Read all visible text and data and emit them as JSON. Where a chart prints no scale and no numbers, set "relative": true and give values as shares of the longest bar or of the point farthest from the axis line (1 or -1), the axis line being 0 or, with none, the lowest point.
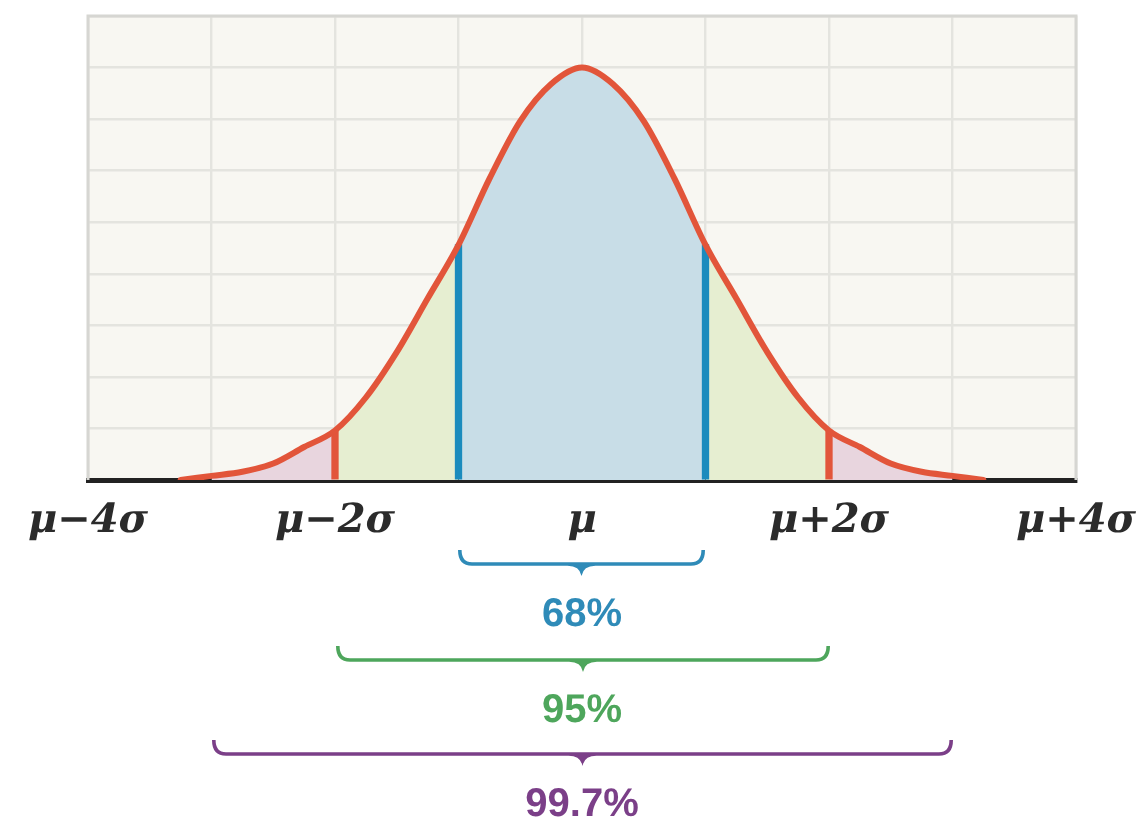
{
  "chart_data": {
    "type": "area",
    "relative": true,
    "categories": [
      "μ−4σ",
      null,
      null,
      null,
      null,
      null,
      null,
      null,
      "μ−2σ",
      null,
      null,
      null,
      null,
      null,
      null,
      null,
      "μ",
      null,
      null,
      null,
      null,
      null,
      null,
      null,
      "μ+2σ",
      null,
      null,
      null,
      null,
      null,
      null,
      null,
      "μ+4σ"
    ],
    "tick_labels": "x",
    "grid": true,
    "marker": "none",
    "series": [
      {
        "color": "#c8dde7",
        "values": [
          null,
          null,
          null,
          null,
          null,
          null,
          null,
          null,
          null,
          null,
          null,
          null,
          0.57,
          0.73,
          0.87,
          0.96,
          1,
          0.96,
          0.87,
          0.73,
          0.57,
          null,
          null,
          null,
          null,
          null,
          null,
          null,
          null,
          null,
          null,
          null,
          null
        ]
      },
      {
        "color": "#e6eed1",
        "values": [
          null,
          null,
          null,
          null,
          null,
          null,
          null,
          null,
          0.12,
          0.2,
          0.31,
          0.44,
          0.57,
          null,
          null,
          null,
          null,
          null,
          null,
          null,
          null,
          null,
          null,
          null,
          null,
          null,
          null,
          null,
          null,
          null,
          null,
          null,
          null
        ]
      },
      {
        "color": "#e6eed1",
        "values": [
          null,
          null,
          null,
          null,
          null,
          null,
          null,
          null,
          null,
          null,
          null,
          null,
          null,
          null,
          null,
          null,
          null,
          null,
          null,
          null,
          0.57,
          0.44,
          0.31,
          0.2,
          0.12,
          null,
          null,
          null,
          null,
          null,
          null,
          null,
          null
        ]
      },
      {
        "color": "#e8d5de",
        "values": [
          null,
          null,
          null,
          null,
          0.01,
          0.02,
          0.04,
          0.08,
          0.12,
          null,
          null,
          null,
          null,
          null,
          null,
          null,
          null,
          null,
          null,
          null,
          null,
          null,
          null,
          null,
          null,
          null,
          null,
          null,
          null,
          null,
          null,
          null,
          null
        ]
      },
      {
        "color": "#e8d5de",
        "values": [
          null,
          null,
          null,
          null,
          null,
          null,
          null,
          null,
          null,
          null,
          null,
          null,
          null,
          null,
          null,
          null,
          null,
          null,
          null,
          null,
          null,
          null,
          null,
          null,
          0.12,
          0.08,
          0.04,
          0.02,
          0.01,
          null,
          null,
          null,
          null
        ]
      },
      {
        "type": "bar",
        "color": "#1b8bbd",
        "values": [
          null,
          null,
          null,
          null,
          null,
          null,
          null,
          null,
          null,
          null,
          null,
          null,
          0.57,
          null,
          null,
          null,
          null,
          null,
          null,
          null,
          0.57,
          null,
          null,
          null,
          null,
          null,
          null,
          null,
          null,
          null,
          null,
          null,
          null
        ]
      },
      {
        "type": "bar",
        "color": "#e2553a",
        "values": [
          null,
          null,
          null,
          null,
          null,
          null,
          null,
          null,
          0.12,
          null,
          null,
          null,
          null,
          null,
          null,
          null,
          null,
          null,
          null,
          null,
          null,
          null,
          null,
          null,
          0.12,
          null,
          null,
          null,
          null,
          null,
          null,
          null,
          null
        ]
      },
      {
        "type": "line",
        "color": "#e2553a",
        "values": [
          null,
          null,
          null,
          0,
          0.01,
          0.02,
          0.04,
          0.08,
          0.12,
          0.2,
          0.31,
          0.44,
          0.57,
          0.73,
          0.87,
          0.96,
          1,
          0.96,
          0.87,
          0.73,
          0.57,
          0.44,
          0.31,
          0.2,
          0.12,
          0.08,
          0.04,
          0.02,
          0.01,
          0,
          null,
          null,
          null
        ]
      }
    ],
    "annotations": [
      "68%",
      "95%",
      "99.7%"
    ]
  }
}
